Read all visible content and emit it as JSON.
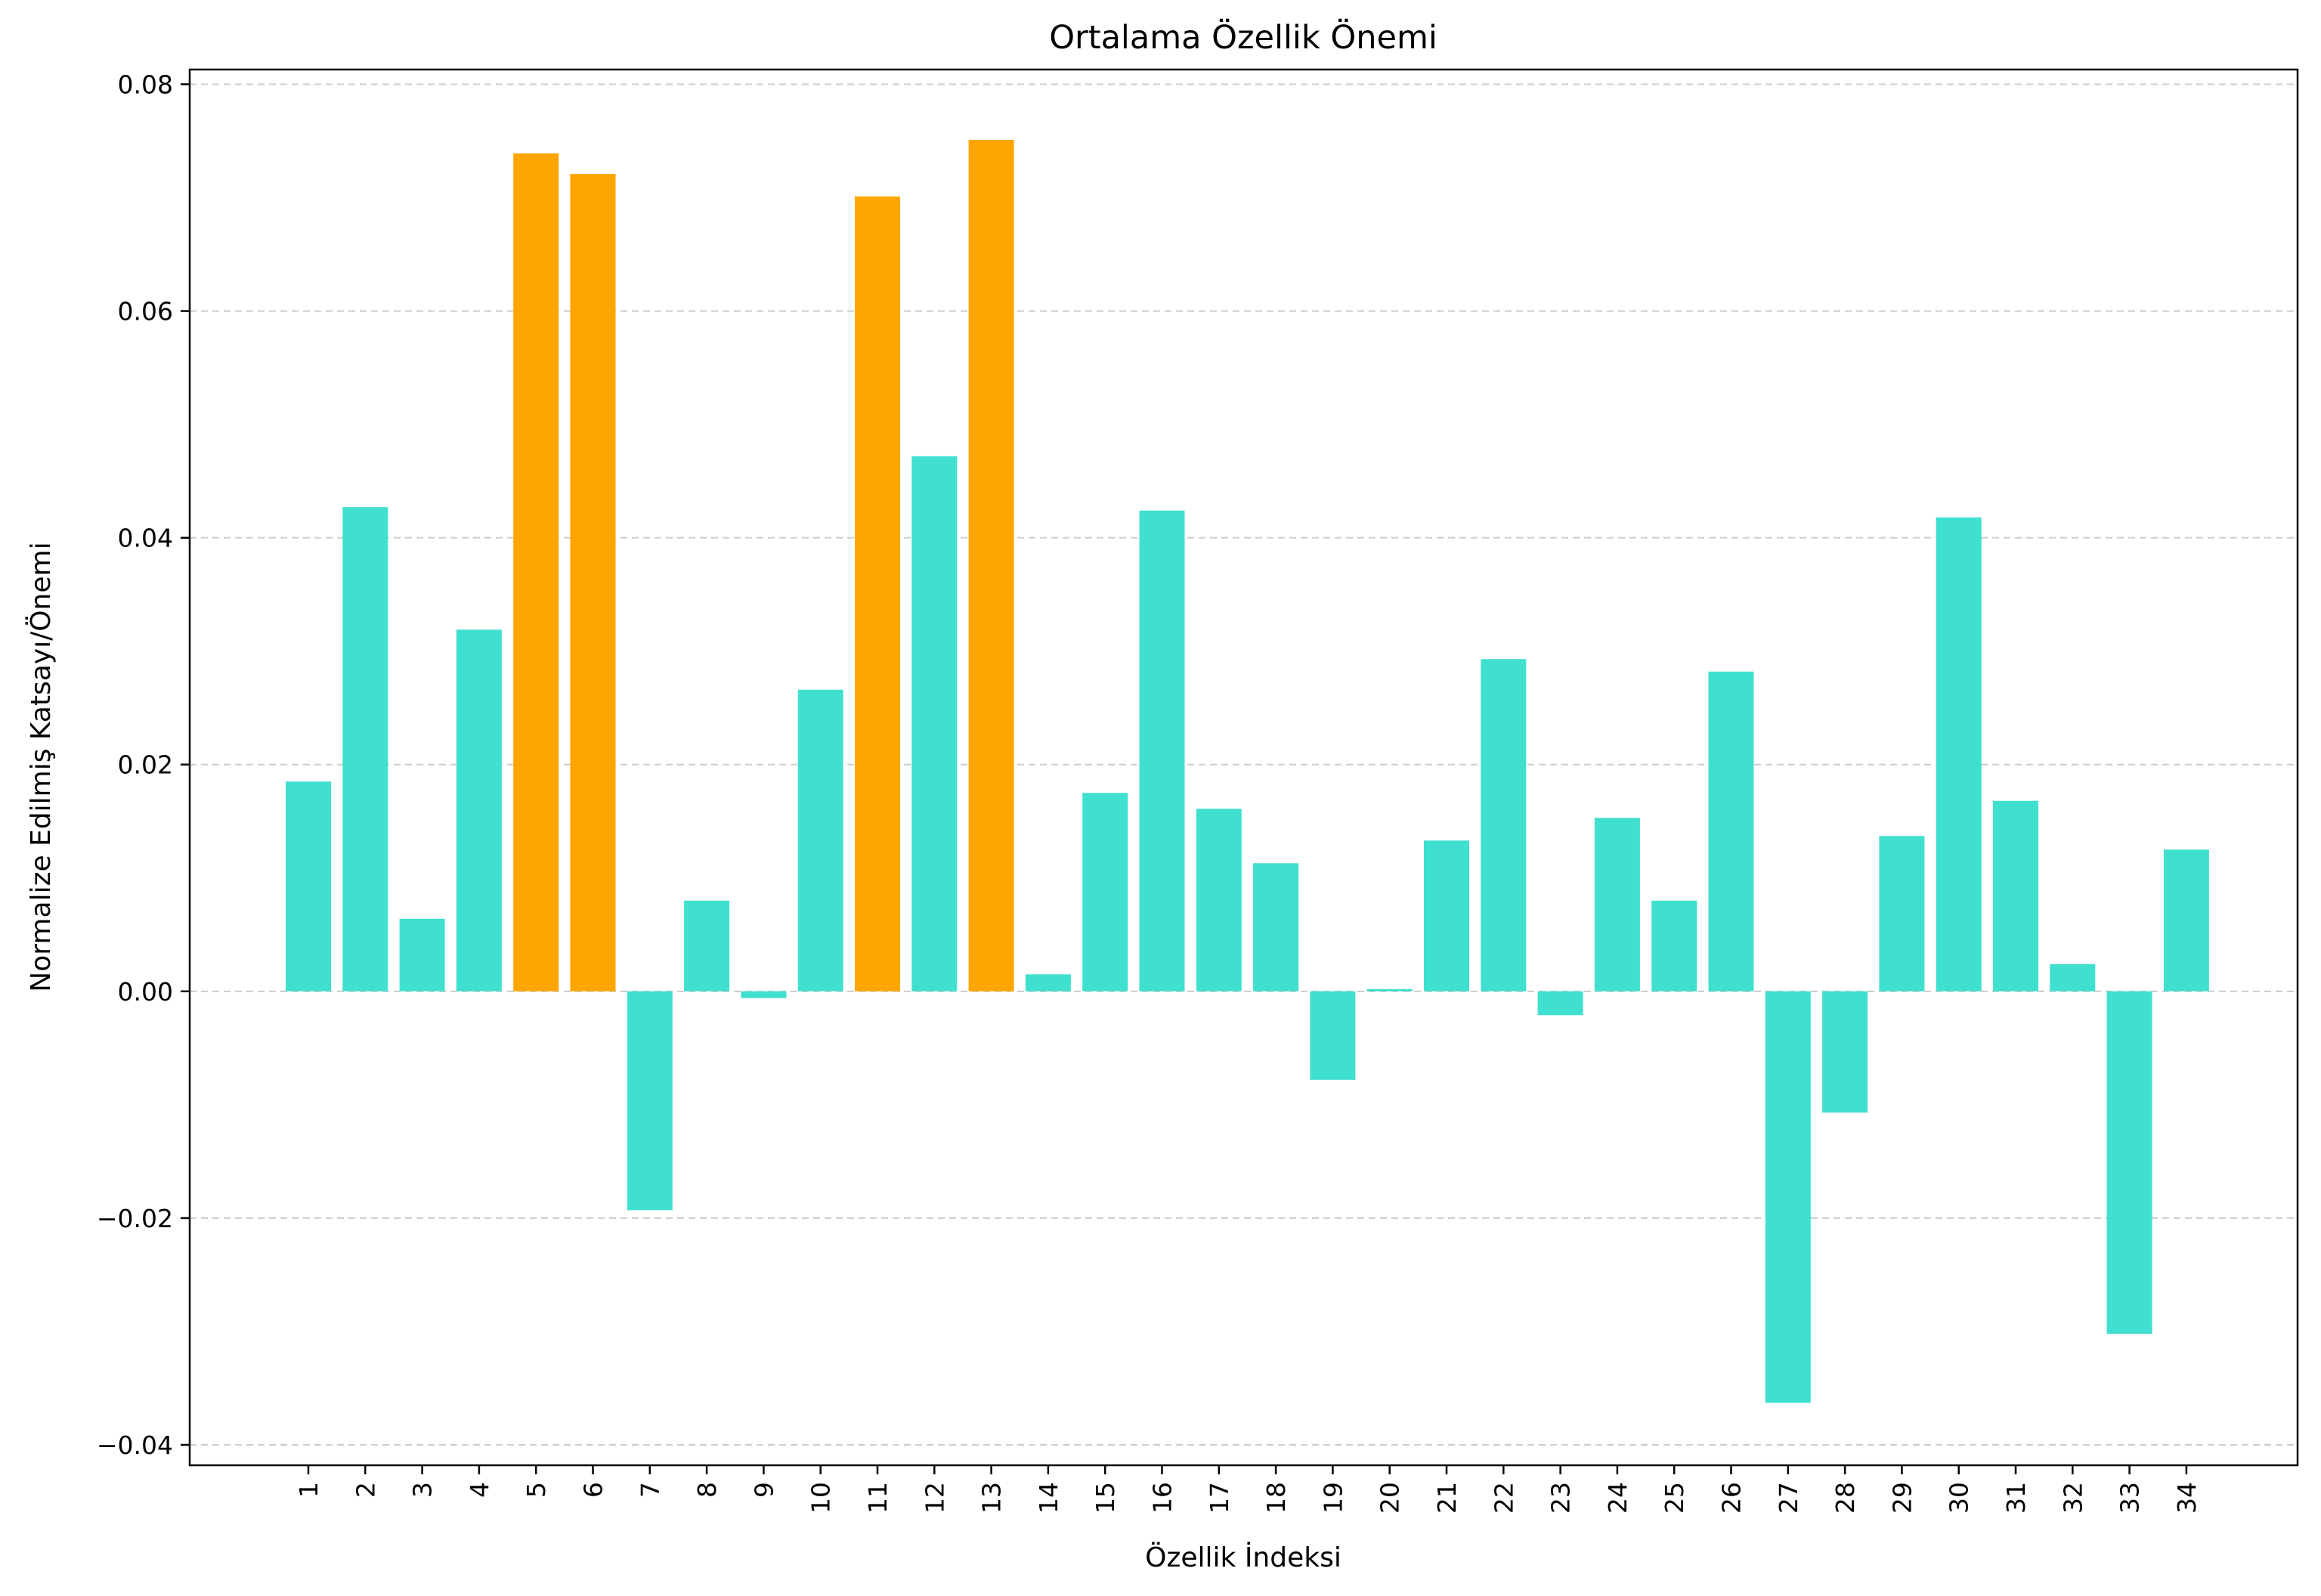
{
  "chart_data": {
    "type": "bar",
    "title": "Ortalama Özellik Önemi",
    "xlabel": "Özellik İndeksi",
    "ylabel": "Normalize Edilmiş Katsayı/Önemi",
    "ylim": [
      -0.0418,
      0.0813
    ],
    "yticks": [
      -0.04,
      -0.02,
      0.0,
      0.02,
      0.04,
      0.06,
      0.08
    ],
    "ytick_labels": [
      "−0.04",
      "−0.02",
      "0.00",
      "0.02",
      "0.04",
      "0.06",
      "0.08"
    ],
    "grid": "horizontal-dashed",
    "categories": [
      "1",
      "2",
      "3",
      "4",
      "5",
      "6",
      "7",
      "8",
      "9",
      "10",
      "11",
      "12",
      "13",
      "14",
      "15",
      "16",
      "17",
      "18",
      "19",
      "20",
      "21",
      "22",
      "23",
      "24",
      "25",
      "26",
      "27",
      "28",
      "29",
      "30",
      "31",
      "32",
      "33",
      "34"
    ],
    "values": [
      0.0185,
      0.0427,
      0.0064,
      0.0319,
      0.0739,
      0.0721,
      -0.0193,
      0.008,
      -0.0006,
      0.0266,
      0.0701,
      0.0472,
      0.0751,
      0.0015,
      0.0175,
      0.0424,
      0.0161,
      0.0113,
      -0.0078,
      0.0002,
      0.0133,
      0.0293,
      -0.0021,
      0.0153,
      0.008,
      0.0282,
      -0.0363,
      -0.0107,
      0.0137,
      0.0418,
      0.0168,
      0.0024,
      -0.0302,
      0.0125
    ],
    "highlighted": [
      "5",
      "6",
      "11",
      "13"
    ],
    "colors": {
      "default": "#40E0D0",
      "highlight": "#FFA500",
      "grid": "#cccccc",
      "axis": "#000000"
    }
  }
}
